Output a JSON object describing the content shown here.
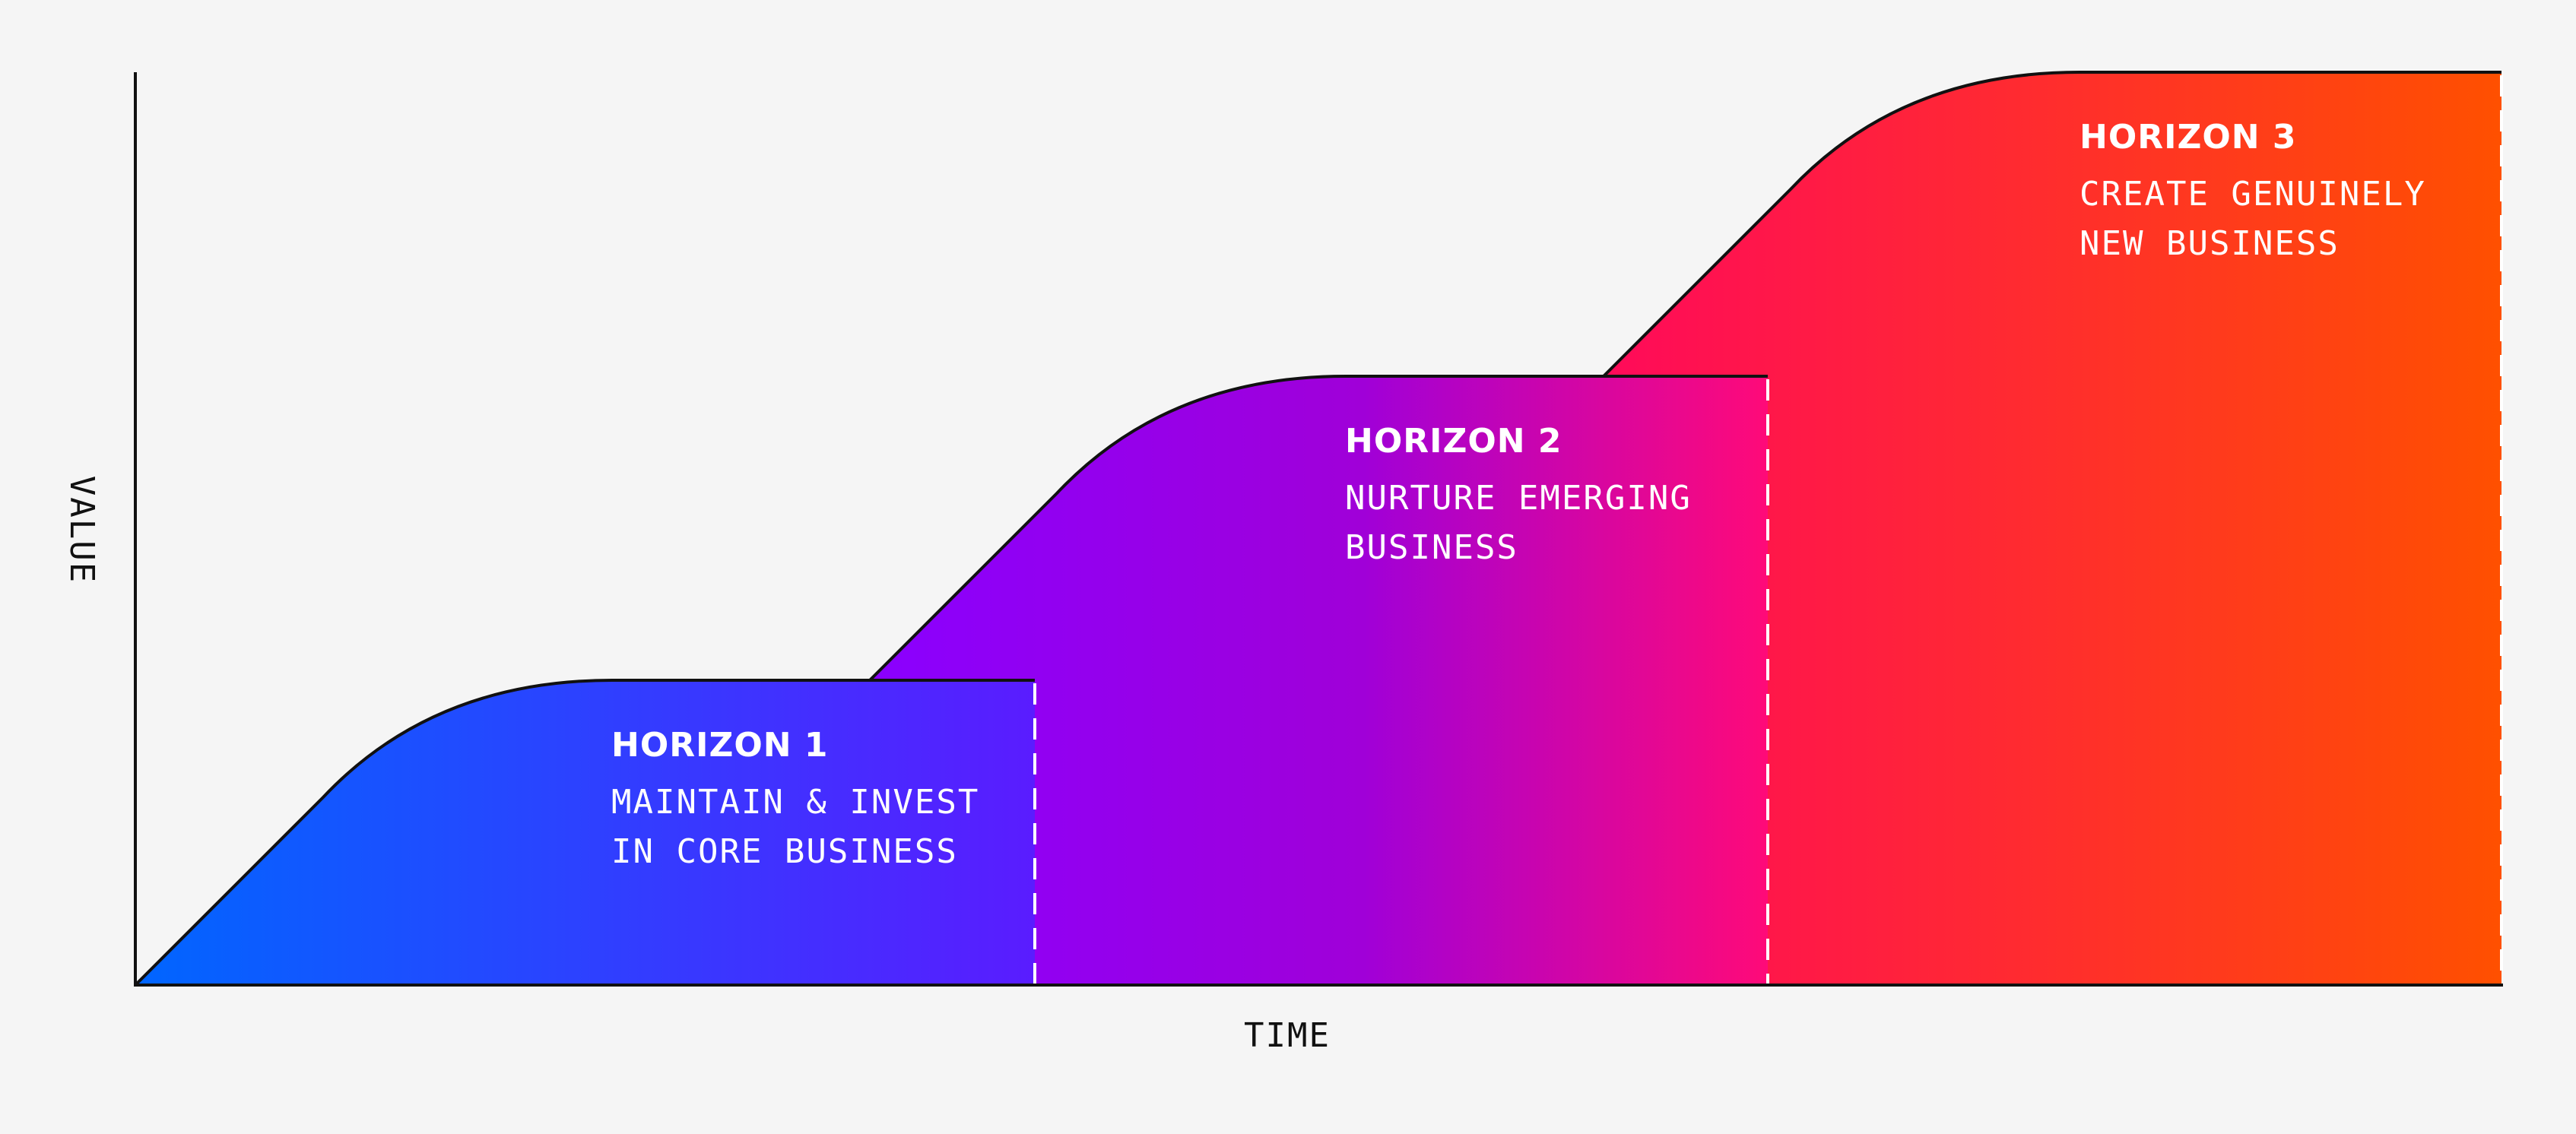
{
  "axes": {
    "x_label": "TIME",
    "y_label": "VALUE"
  },
  "horizons": [
    {
      "title": "HORIZON 1",
      "desc_line1": "MAINTAIN & INVEST",
      "desc_line2": "IN CORE BUSINESS",
      "gradient_start": "#0066ff",
      "gradient_end": "#5a1cff"
    },
    {
      "title": "HORIZON 2",
      "desc_line1": "NURTURE EMERGING",
      "desc_line2": "BUSINESS",
      "gradient_start": "#8a00ff",
      "gradient_end": "#ff0a78"
    },
    {
      "title": "HORIZON 3",
      "desc_line1": "CREATE GENUINELY",
      "desc_line2": "NEW BUSINESS",
      "gradient_start": "#ff0a5a",
      "gradient_end": "#ff5000"
    }
  ],
  "colors": {
    "background": "#f5f5f5",
    "axis": "#111111",
    "divider": "#ffffff"
  }
}
